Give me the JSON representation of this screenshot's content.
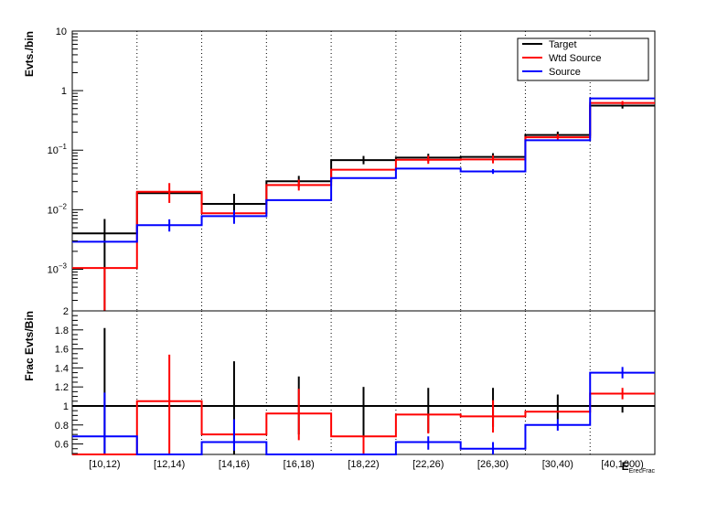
{
  "chart_data": [
    {
      "type": "step",
      "panel": "top",
      "ylabel": "Evts./bin",
      "yscale": "log",
      "ylim": [
        0.0002,
        10
      ],
      "yticks": [
        {
          "value": 10,
          "base": "10",
          "exp": ""
        },
        {
          "value": 1,
          "base": "1",
          "exp": ""
        },
        {
          "value": 0.1,
          "base": "10",
          "exp": "−1"
        },
        {
          "value": 0.01,
          "base": "10",
          "exp": "−2"
        },
        {
          "value": 0.001,
          "base": "10",
          "exp": "−3"
        }
      ],
      "categories": [
        "[10,12)",
        "[12,14)",
        "[14,16)",
        "[16,18)",
        "[18,22)",
        "[22,26)",
        "[26,30)",
        "[30,40)",
        "[40,1000)"
      ],
      "legend_position": "top-right",
      "legend": [
        "Target",
        "Wtd Source",
        "Source"
      ],
      "series": [
        {
          "name": "Target",
          "color": "#000000",
          "values": [
            0.004,
            0.019,
            0.0125,
            0.03,
            0.068,
            0.075,
            0.077,
            0.18,
            0.56
          ],
          "err_low": [
            0.0039,
            0.0,
            0.0055,
            0.006,
            0.01,
            0.01,
            0.01,
            0.02,
            0.06
          ],
          "err_high": [
            0.003,
            0.0,
            0.006,
            0.007,
            0.012,
            0.012,
            0.012,
            0.025,
            0.06
          ]
        },
        {
          "name": "Wtd Source",
          "color": "#ff0000",
          "values": [
            0.00105,
            0.02,
            0.0087,
            0.026,
            0.047,
            0.069,
            0.07,
            0.165,
            0.62
          ],
          "err_low": [
            0.00095,
            0.007,
            0.0,
            0.005,
            0.0,
            0.01,
            0.01,
            0.02,
            0.05
          ],
          "err_high": [
            0.0,
            0.008,
            0.0,
            0.006,
            0.0,
            0.012,
            0.012,
            0.02,
            0.05
          ]
        },
        {
          "name": "Source",
          "color": "#0000ff",
          "values": [
            0.0029,
            0.0055,
            0.0078,
            0.0145,
            0.034,
            0.049,
            0.044,
            0.147,
            0.74
          ],
          "err_low": [
            0.0,
            0.0012,
            0.002,
            0.0,
            0.0,
            0.0,
            0.004,
            0.0,
            0.0
          ],
          "err_high": [
            0.0,
            0.0014,
            0.002,
            0.0,
            0.0,
            0.0,
            0.004,
            0.0,
            0.0
          ]
        }
      ]
    },
    {
      "type": "step",
      "panel": "bottom",
      "ylabel": "Frac Evts/Bin",
      "ylim": [
        0.49,
        2.0
      ],
      "yticks": [
        "0.6",
        "0.8",
        "1",
        "1.2",
        "1.4",
        "1.6",
        "1.8",
        "2"
      ],
      "xlabel": "E",
      "xlabel_sub": "ErecFrac",
      "categories": [
        "[10,12)",
        "[12,14)",
        "[14,16)",
        "[16,18)",
        "[18,22)",
        "[22,26)",
        "[26,30)",
        "[30,40)",
        "[40,1000)"
      ],
      "series": [
        {
          "name": "Target",
          "color": "#000000",
          "values": [
            1,
            1,
            1,
            1,
            1,
            1,
            1,
            1,
            1
          ],
          "err_low": [
            0.51,
            0.0,
            0.51,
            0.3,
            0.35,
            0.28,
            0.22,
            0.14,
            0.07
          ],
          "err_high": [
            0.82,
            0.0,
            0.47,
            0.31,
            0.2,
            0.19,
            0.19,
            0.12,
            0.0
          ]
        },
        {
          "name": "Wtd Source",
          "color": "#ff0000",
          "values": [
            0.49,
            1.05,
            0.7,
            0.92,
            0.68,
            0.91,
            0.89,
            0.94,
            1.13
          ],
          "err_low": [
            0.0,
            0.56,
            0.0,
            0.28,
            0.18,
            0.2,
            0.17,
            0.0,
            0.06
          ],
          "err_high": [
            0.0,
            0.49,
            0.0,
            0.26,
            0.0,
            0.0,
            0.17,
            0.0,
            0.06
          ]
        },
        {
          "name": "Source",
          "color": "#0000ff",
          "values": [
            0.68,
            0.49,
            0.62,
            0.49,
            0.49,
            0.62,
            0.55,
            0.8,
            1.35
          ],
          "err_low": [
            0.18,
            0.0,
            0.09,
            0.0,
            0.0,
            0.08,
            0.07,
            0.06,
            0.06
          ],
          "err_high": [
            0.46,
            0.0,
            0.24,
            0.0,
            0.0,
            0.06,
            0.07,
            0.06,
            0.06
          ]
        }
      ]
    }
  ]
}
